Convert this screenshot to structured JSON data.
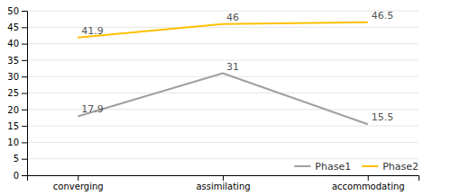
{
  "chart_data": {
    "type": "line",
    "categories": [
      "converging",
      "assimilating",
      "accommodating"
    ],
    "series": [
      {
        "name": "Phase1",
        "color": "#a0a0a0",
        "values": [
          17.9,
          31,
          15.5
        ]
      },
      {
        "name": "Phase2",
        "color": "#FFC000",
        "values": [
          41.9,
          46,
          46.5
        ]
      }
    ],
    "ylim": [
      0,
      50
    ],
    "yticks": [
      0,
      5,
      10,
      15,
      20,
      25,
      30,
      35,
      40,
      45,
      50
    ],
    "grid": true,
    "legend": "lower right",
    "data_labels": true
  }
}
